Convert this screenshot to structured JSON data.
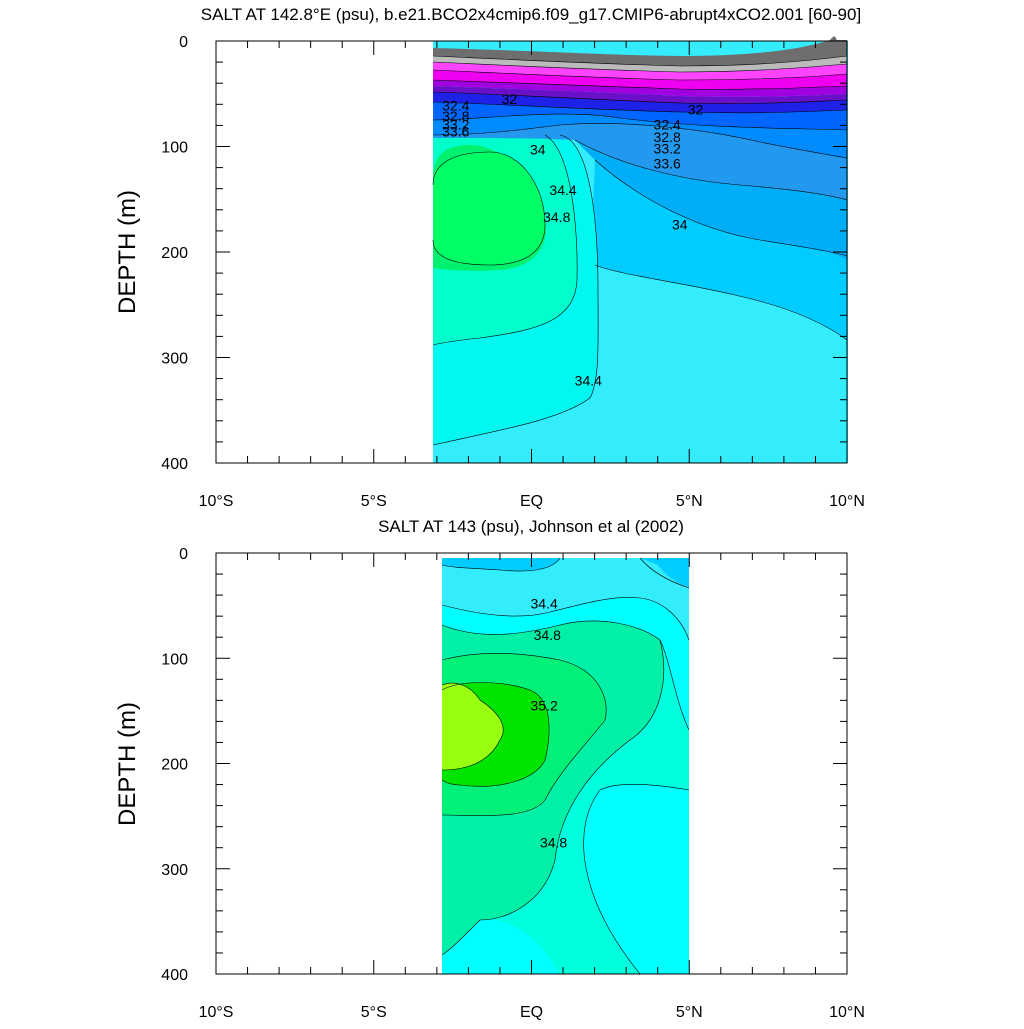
{
  "chart_data": [
    {
      "type": "contour",
      "title": "SALT AT 142.8°E (psu), b.e21.BCO2x4cmip6.f09_g17.CMIP6-abrupt4xCO2.001 [60-90]",
      "xlabel": "",
      "ylabel": "DEPTH (m)",
      "xlim": [
        -10,
        10
      ],
      "ylim": [
        400,
        0
      ],
      "x_ticks": [
        {
          "v": -10,
          "label": "10°S"
        },
        {
          "v": -5,
          "label": "5°S"
        },
        {
          "v": 0,
          "label": "EQ"
        },
        {
          "v": 5,
          "label": "5°N"
        },
        {
          "v": 10,
          "label": "10°N"
        }
      ],
      "y_ticks": [
        {
          "v": 0,
          "label": "0"
        },
        {
          "v": 100,
          "label": "100"
        },
        {
          "v": 200,
          "label": "200"
        },
        {
          "v": 300,
          "label": "300"
        },
        {
          "v": 400,
          "label": "400"
        }
      ],
      "data_extent": {
        "x": [
          -3.1,
          10
        ],
        "depth": [
          40,
          400
        ]
      },
      "levels_psu": [
        31.6,
        32,
        32.2,
        32.4,
        32.6,
        32.8,
        33,
        33.2,
        33.4,
        33.6,
        33.8,
        34,
        34.2,
        34.4,
        34.6,
        34.8,
        35,
        35.2
      ],
      "labels": [
        {
          "text": "32",
          "x": -0.7,
          "d": 55
        },
        {
          "text": "32",
          "x": 5.2,
          "d": 65
        },
        {
          "text": "32.4",
          "x": -2.4,
          "d": 61
        },
        {
          "text": "32.8",
          "x": -2.4,
          "d": 71
        },
        {
          "text": "33.2",
          "x": -2.4,
          "d": 79
        },
        {
          "text": "33.6",
          "x": -2.4,
          "d": 86
        },
        {
          "text": "32.4",
          "x": 4.3,
          "d": 79
        },
        {
          "text": "32.8",
          "x": 4.3,
          "d": 91
        },
        {
          "text": "33.2",
          "x": 4.3,
          "d": 102
        },
        {
          "text": "33.6",
          "x": 4.3,
          "d": 116
        },
        {
          "text": "34",
          "x": 0.2,
          "d": 103
        },
        {
          "text": "34.4",
          "x": 1.0,
          "d": 141
        },
        {
          "text": "34.8",
          "x": 0.8,
          "d": 167
        },
        {
          "text": "34",
          "x": 4.7,
          "d": 174
        },
        {
          "text": "34.4",
          "x": 1.8,
          "d": 322
        }
      ]
    },
    {
      "type": "contour",
      "title": "SALT AT 143 (psu), Johnson et al (2002)",
      "xlabel": "",
      "ylabel": "DEPTH (m)",
      "xlim": [
        -10,
        10
      ],
      "ylim": [
        400,
        0
      ],
      "x_ticks": [
        {
          "v": -10,
          "label": "10°S"
        },
        {
          "v": -5,
          "label": "5°S"
        },
        {
          "v": 0,
          "label": "EQ"
        },
        {
          "v": 5,
          "label": "5°N"
        },
        {
          "v": 10,
          "label": "10°N"
        }
      ],
      "y_ticks": [
        {
          "v": 0,
          "label": "0"
        },
        {
          "v": 100,
          "label": "100"
        },
        {
          "v": 200,
          "label": "200"
        },
        {
          "v": 300,
          "label": "300"
        },
        {
          "v": 400,
          "label": "400"
        }
      ],
      "data_extent": {
        "x": [
          -2.8,
          5
        ],
        "depth": [
          5,
          400
        ]
      },
      "levels_psu": [
        34.2,
        34.4,
        34.6,
        34.8,
        35,
        35.2,
        35.4
      ],
      "labels": [
        {
          "text": "34.4",
          "x": 0.4,
          "d": 48
        },
        {
          "text": "34.8",
          "x": 0.5,
          "d": 78
        },
        {
          "text": "35.2",
          "x": 0.4,
          "d": 145
        },
        {
          "text": "34.8",
          "x": 0.7,
          "d": 275
        }
      ]
    }
  ]
}
